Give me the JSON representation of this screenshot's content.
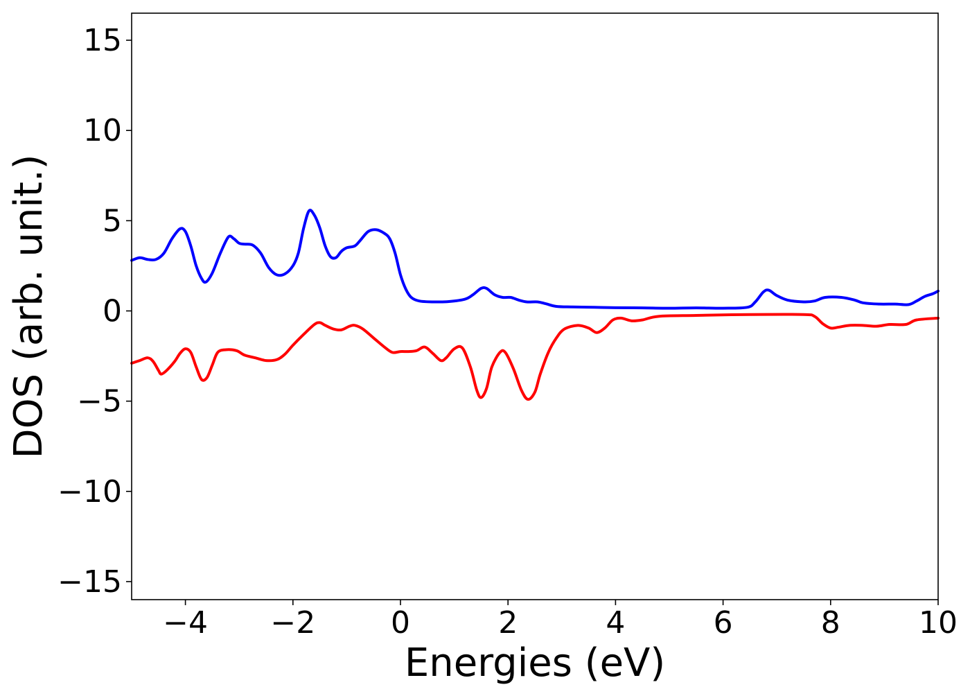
{
  "chart_data": {
    "type": "line",
    "title": "",
    "xlabel": "Energies (eV)",
    "ylabel": "DOS (arb. unit.)",
    "xlim": [
      -5,
      10
    ],
    "ylim": [
      -16,
      16.5
    ],
    "xticks": [
      -4,
      -2,
      0,
      2,
      4,
      6,
      8,
      10
    ],
    "yticks": [
      -15,
      -10,
      -5,
      0,
      5,
      10,
      15
    ],
    "xtick_labels": [
      "−4",
      "−2",
      "0",
      "2",
      "4",
      "6",
      "8",
      "10"
    ],
    "ytick_labels": [
      "−15",
      "−10",
      "−5",
      "0",
      "5",
      "10",
      "15"
    ],
    "grid": false,
    "legend": "none",
    "series": [
      {
        "color": "#0000ff",
        "points": [
          [
            -5.0,
            2.8
          ],
          [
            -4.85,
            2.95
          ],
          [
            -4.7,
            2.85
          ],
          [
            -4.55,
            2.85
          ],
          [
            -4.4,
            3.2
          ],
          [
            -4.25,
            4.0
          ],
          [
            -4.1,
            4.55
          ],
          [
            -4.0,
            4.4
          ],
          [
            -3.9,
            3.6
          ],
          [
            -3.8,
            2.5
          ],
          [
            -3.7,
            1.8
          ],
          [
            -3.62,
            1.6
          ],
          [
            -3.5,
            2.1
          ],
          [
            -3.35,
            3.2
          ],
          [
            -3.2,
            4.1
          ],
          [
            -3.1,
            4.0
          ],
          [
            -3.0,
            3.75
          ],
          [
            -2.9,
            3.7
          ],
          [
            -2.75,
            3.65
          ],
          [
            -2.6,
            3.2
          ],
          [
            -2.45,
            2.4
          ],
          [
            -2.3,
            2.0
          ],
          [
            -2.15,
            2.05
          ],
          [
            -2.0,
            2.5
          ],
          [
            -1.9,
            3.2
          ],
          [
            -1.8,
            4.6
          ],
          [
            -1.7,
            5.55
          ],
          [
            -1.6,
            5.3
          ],
          [
            -1.5,
            4.6
          ],
          [
            -1.4,
            3.6
          ],
          [
            -1.3,
            3.0
          ],
          [
            -1.2,
            2.95
          ],
          [
            -1.1,
            3.3
          ],
          [
            -1.0,
            3.5
          ],
          [
            -0.85,
            3.6
          ],
          [
            -0.75,
            3.9
          ],
          [
            -0.6,
            4.4
          ],
          [
            -0.45,
            4.5
          ],
          [
            -0.3,
            4.3
          ],
          [
            -0.2,
            4.0
          ],
          [
            -0.1,
            3.2
          ],
          [
            0.0,
            2.0
          ],
          [
            0.1,
            1.2
          ],
          [
            0.2,
            0.75
          ],
          [
            0.35,
            0.55
          ],
          [
            0.6,
            0.5
          ],
          [
            0.9,
            0.52
          ],
          [
            1.2,
            0.65
          ],
          [
            1.35,
            0.9
          ],
          [
            1.5,
            1.25
          ],
          [
            1.6,
            1.25
          ],
          [
            1.75,
            0.9
          ],
          [
            1.9,
            0.75
          ],
          [
            2.05,
            0.75
          ],
          [
            2.2,
            0.6
          ],
          [
            2.35,
            0.5
          ],
          [
            2.55,
            0.5
          ],
          [
            2.7,
            0.4
          ],
          [
            2.9,
            0.25
          ],
          [
            3.2,
            0.22
          ],
          [
            3.6,
            0.2
          ],
          [
            4.0,
            0.18
          ],
          [
            4.5,
            0.17
          ],
          [
            5.0,
            0.15
          ],
          [
            5.5,
            0.17
          ],
          [
            6.0,
            0.15
          ],
          [
            6.45,
            0.2
          ],
          [
            6.6,
            0.5
          ],
          [
            6.75,
            1.05
          ],
          [
            6.85,
            1.15
          ],
          [
            7.0,
            0.85
          ],
          [
            7.2,
            0.6
          ],
          [
            7.5,
            0.5
          ],
          [
            7.7,
            0.55
          ],
          [
            7.9,
            0.75
          ],
          [
            8.2,
            0.75
          ],
          [
            8.45,
            0.6
          ],
          [
            8.6,
            0.45
          ],
          [
            8.9,
            0.38
          ],
          [
            9.2,
            0.38
          ],
          [
            9.45,
            0.35
          ],
          [
            9.6,
            0.55
          ],
          [
            9.75,
            0.8
          ],
          [
            9.9,
            0.95
          ],
          [
            10.0,
            1.1
          ]
        ]
      },
      {
        "color": "#ff0000",
        "points": [
          [
            -5.0,
            -2.9
          ],
          [
            -4.85,
            -2.75
          ],
          [
            -4.7,
            -2.6
          ],
          [
            -4.6,
            -2.8
          ],
          [
            -4.5,
            -3.3
          ],
          [
            -4.45,
            -3.5
          ],
          [
            -4.35,
            -3.3
          ],
          [
            -4.2,
            -2.8
          ],
          [
            -4.1,
            -2.35
          ],
          [
            -4.0,
            -2.1
          ],
          [
            -3.9,
            -2.3
          ],
          [
            -3.8,
            -3.1
          ],
          [
            -3.7,
            -3.8
          ],
          [
            -3.6,
            -3.7
          ],
          [
            -3.5,
            -3.0
          ],
          [
            -3.4,
            -2.3
          ],
          [
            -3.25,
            -2.15
          ],
          [
            -3.05,
            -2.2
          ],
          [
            -2.9,
            -2.45
          ],
          [
            -2.7,
            -2.6
          ],
          [
            -2.5,
            -2.75
          ],
          [
            -2.3,
            -2.7
          ],
          [
            -2.15,
            -2.4
          ],
          [
            -2.0,
            -1.9
          ],
          [
            -1.8,
            -1.3
          ],
          [
            -1.6,
            -0.75
          ],
          [
            -1.5,
            -0.65
          ],
          [
            -1.4,
            -0.8
          ],
          [
            -1.25,
            -1.0
          ],
          [
            -1.1,
            -1.05
          ],
          [
            -0.95,
            -0.85
          ],
          [
            -0.85,
            -0.8
          ],
          [
            -0.7,
            -1.0
          ],
          [
            -0.5,
            -1.5
          ],
          [
            -0.3,
            -2.0
          ],
          [
            -0.15,
            -2.3
          ],
          [
            0.0,
            -2.25
          ],
          [
            0.15,
            -2.25
          ],
          [
            0.3,
            -2.2
          ],
          [
            0.45,
            -2.0
          ],
          [
            0.6,
            -2.35
          ],
          [
            0.75,
            -2.75
          ],
          [
            0.85,
            -2.6
          ],
          [
            1.0,
            -2.1
          ],
          [
            1.15,
            -2.05
          ],
          [
            1.3,
            -3.1
          ],
          [
            1.42,
            -4.4
          ],
          [
            1.5,
            -4.8
          ],
          [
            1.6,
            -4.3
          ],
          [
            1.7,
            -3.1
          ],
          [
            1.85,
            -2.3
          ],
          [
            1.95,
            -2.3
          ],
          [
            2.1,
            -3.2
          ],
          [
            2.25,
            -4.4
          ],
          [
            2.37,
            -4.9
          ],
          [
            2.5,
            -4.5
          ],
          [
            2.6,
            -3.5
          ],
          [
            2.75,
            -2.3
          ],
          [
            2.9,
            -1.5
          ],
          [
            3.05,
            -1.0
          ],
          [
            3.3,
            -0.8
          ],
          [
            3.5,
            -0.95
          ],
          [
            3.65,
            -1.2
          ],
          [
            3.8,
            -0.95
          ],
          [
            3.95,
            -0.5
          ],
          [
            4.1,
            -0.4
          ],
          [
            4.3,
            -0.55
          ],
          [
            4.5,
            -0.5
          ],
          [
            4.8,
            -0.3
          ],
          [
            5.5,
            -0.25
          ],
          [
            6.5,
            -0.2
          ],
          [
            7.5,
            -0.2
          ],
          [
            7.7,
            -0.3
          ],
          [
            7.85,
            -0.7
          ],
          [
            8.0,
            -0.95
          ],
          [
            8.15,
            -0.9
          ],
          [
            8.35,
            -0.8
          ],
          [
            8.6,
            -0.8
          ],
          [
            8.85,
            -0.85
          ],
          [
            9.1,
            -0.75
          ],
          [
            9.4,
            -0.75
          ],
          [
            9.6,
            -0.5
          ],
          [
            10.0,
            -0.4
          ]
        ]
      }
    ]
  }
}
